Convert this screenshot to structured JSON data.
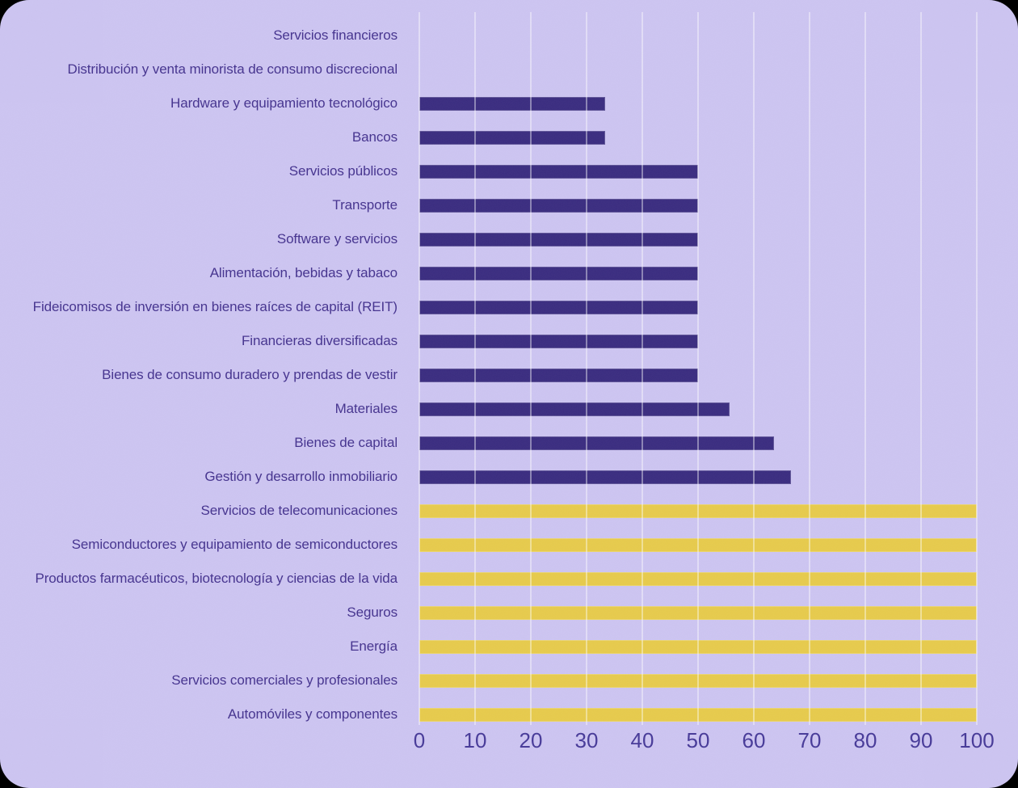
{
  "colors": {
    "page_background": "#000000",
    "card_background": "#cdc5f2",
    "gridline": "rgba(255,255,255,0.42)",
    "bar_purple": "#3a2c80",
    "bar_yellow": "#e7cb4c",
    "label_text": "#45338f",
    "tick_text": "#473a99"
  },
  "chart_data": {
    "type": "bar",
    "orientation": "horizontal",
    "title": "",
    "xlabel": "",
    "ylabel": "",
    "xlim": [
      0,
      100
    ],
    "x_ticks": [
      0,
      10,
      20,
      30,
      40,
      50,
      60,
      70,
      80,
      90,
      100
    ],
    "grid": "vertical-gridlines-over-bars",
    "legend": "none",
    "categories": [
      "Servicios financieros",
      "Distribución y venta minorista de consumo discrecional",
      "Hardware y equipamiento tecnológico",
      "Bancos",
      "Servicios públicos",
      "Transporte",
      "Software y servicios",
      "Alimentación, bebidas y tabaco",
      "Fideicomisos de inversión en bienes raíces de capital (REIT)",
      "Financieras diversificadas",
      "Bienes de consumo duradero y prendas de vestir",
      "Materiales",
      "Bienes de capital",
      "Gestión y desarrollo inmobiliario",
      "Servicios de telecomunicaciones",
      "Semiconductores y equipamiento de semiconductores",
      "Productos farmacéuticos, biotecnología y ciencias de la vida",
      "Seguros",
      "Energía",
      "Servicios comerciales y profesionales",
      "Automóviles y componentes"
    ],
    "values": [
      0,
      0,
      33.3,
      33.3,
      50,
      50,
      50,
      50,
      50,
      50,
      50,
      55.6,
      63.6,
      66.7,
      100,
      100,
      100,
      100,
      100,
      100,
      100
    ],
    "bar_color_groups": [
      "purple",
      "purple",
      "purple",
      "purple",
      "purple",
      "purple",
      "purple",
      "purple",
      "purple",
      "purple",
      "purple",
      "purple",
      "purple",
      "purple",
      "yellow",
      "yellow",
      "yellow",
      "yellow",
      "yellow",
      "yellow",
      "yellow"
    ]
  }
}
